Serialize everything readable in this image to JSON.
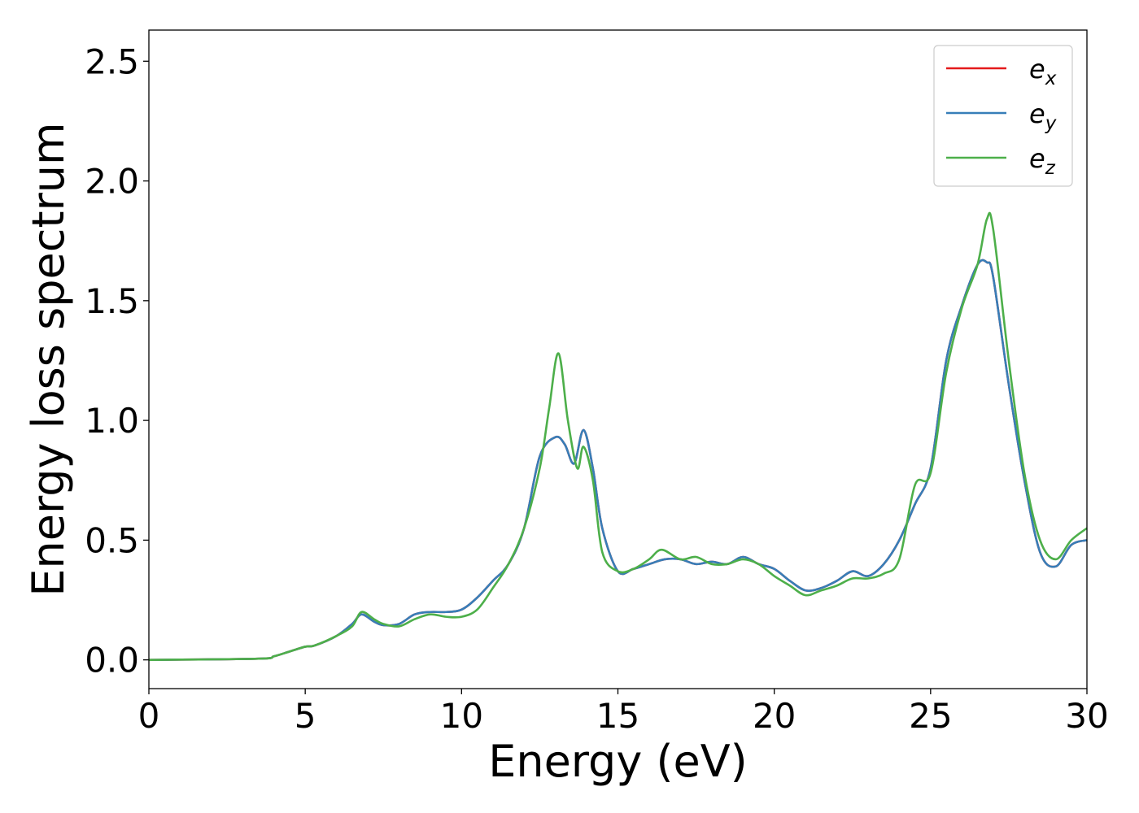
{
  "chart_data": {
    "type": "line",
    "title": "",
    "xlabel": "Energy (eV)",
    "ylabel": "Energy loss spectrum",
    "xlim": [
      0,
      30
    ],
    "ylim": [
      -0.12,
      2.63
    ],
    "xticks": [
      0,
      5,
      10,
      15,
      20,
      25,
      30
    ],
    "xtick_labels": [
      "0",
      "5",
      "10",
      "15",
      "20",
      "25",
      "30"
    ],
    "yticks": [
      0.0,
      0.5,
      1.0,
      1.5,
      2.0,
      2.5
    ],
    "ytick_labels": [
      "0.0",
      "0.5",
      "1.0",
      "1.5",
      "2.0",
      "2.5"
    ],
    "grid": false,
    "legend": {
      "position": "top-right",
      "entries": [
        {
          "base": "e",
          "sub": "x",
          "color": "#e41a1c"
        },
        {
          "base": "e",
          "sub": "y",
          "color": "#377eb8"
        },
        {
          "base": "e",
          "sub": "z",
          "color": "#4daf4a"
        }
      ]
    },
    "series": [
      {
        "name": "e_x",
        "color": "#e41a1c",
        "x": [
          0,
          3.5,
          4,
          4.5,
          5,
          5.3,
          6,
          6.5,
          6.8,
          7.2,
          7.5,
          8,
          8.5,
          9,
          9.5,
          10,
          10.5,
          11,
          11.5,
          12,
          12.5,
          13,
          13.3,
          13.6,
          13.9,
          14.2,
          14.5,
          15,
          15.5,
          16,
          16.5,
          17,
          17.5,
          18,
          18.5,
          19,
          19.5,
          20,
          20.5,
          21,
          21.5,
          22,
          22.5,
          23,
          23.5,
          24,
          24.5,
          25,
          25.5,
          26,
          26.5,
          26.8,
          27,
          27.5,
          28,
          28.5,
          29,
          29.5,
          30
        ],
        "y": [
          0.0,
          0.005,
          0.015,
          0.035,
          0.055,
          0.06,
          0.1,
          0.15,
          0.19,
          0.16,
          0.145,
          0.15,
          0.19,
          0.2,
          0.2,
          0.21,
          0.26,
          0.33,
          0.4,
          0.55,
          0.85,
          0.93,
          0.9,
          0.82,
          0.96,
          0.8,
          0.55,
          0.37,
          0.38,
          0.4,
          0.42,
          0.42,
          0.4,
          0.41,
          0.4,
          0.43,
          0.4,
          0.38,
          0.33,
          0.29,
          0.3,
          0.33,
          0.37,
          0.35,
          0.4,
          0.5,
          0.65,
          0.8,
          1.25,
          1.48,
          1.65,
          1.66,
          1.6,
          1.15,
          0.75,
          0.45,
          0.39,
          0.48,
          0.5
        ]
      },
      {
        "name": "e_y",
        "color": "#377eb8",
        "x": [
          0,
          3.5,
          4,
          4.5,
          5,
          5.3,
          6,
          6.5,
          6.8,
          7.2,
          7.5,
          8,
          8.5,
          9,
          9.5,
          10,
          10.5,
          11,
          11.5,
          12,
          12.5,
          13,
          13.3,
          13.6,
          13.9,
          14.2,
          14.5,
          15,
          15.5,
          16,
          16.5,
          17,
          17.5,
          18,
          18.5,
          19,
          19.5,
          20,
          20.5,
          21,
          21.5,
          22,
          22.5,
          23,
          23.5,
          24,
          24.5,
          25,
          25.5,
          26,
          26.5,
          26.8,
          27,
          27.5,
          28,
          28.5,
          29,
          29.5,
          30
        ],
        "y": [
          0.0,
          0.005,
          0.015,
          0.035,
          0.055,
          0.06,
          0.1,
          0.15,
          0.19,
          0.16,
          0.145,
          0.15,
          0.19,
          0.2,
          0.2,
          0.21,
          0.26,
          0.33,
          0.4,
          0.55,
          0.85,
          0.93,
          0.9,
          0.82,
          0.96,
          0.8,
          0.55,
          0.37,
          0.38,
          0.4,
          0.42,
          0.42,
          0.4,
          0.41,
          0.4,
          0.43,
          0.4,
          0.38,
          0.33,
          0.29,
          0.3,
          0.33,
          0.37,
          0.35,
          0.4,
          0.5,
          0.65,
          0.8,
          1.25,
          1.48,
          1.65,
          1.66,
          1.6,
          1.15,
          0.75,
          0.45,
          0.39,
          0.48,
          0.5
        ]
      },
      {
        "name": "e_z",
        "color": "#4daf4a",
        "x": [
          0,
          3.5,
          4,
          4.5,
          5,
          5.3,
          6,
          6.5,
          6.8,
          7.2,
          7.5,
          8,
          8.5,
          9,
          9.5,
          10,
          10.5,
          11,
          11.5,
          12,
          12.5,
          12.8,
          13.1,
          13.4,
          13.7,
          13.9,
          14.2,
          14.5,
          15,
          15.5,
          16,
          16.4,
          17,
          17.5,
          18,
          18.5,
          19,
          19.5,
          20,
          20.5,
          21,
          21.5,
          22,
          22.5,
          23,
          23.5,
          24,
          24.5,
          25,
          25.5,
          26,
          26.5,
          26.8,
          27,
          27.5,
          28,
          28.5,
          29,
          29.5,
          30
        ],
        "y": [
          0.0,
          0.005,
          0.015,
          0.035,
          0.055,
          0.06,
          0.1,
          0.14,
          0.2,
          0.17,
          0.15,
          0.14,
          0.17,
          0.19,
          0.18,
          0.18,
          0.21,
          0.3,
          0.4,
          0.55,
          0.8,
          1.05,
          1.28,
          1.0,
          0.8,
          0.89,
          0.75,
          0.45,
          0.37,
          0.38,
          0.42,
          0.46,
          0.42,
          0.43,
          0.4,
          0.4,
          0.42,
          0.4,
          0.35,
          0.31,
          0.27,
          0.29,
          0.31,
          0.34,
          0.34,
          0.36,
          0.42,
          0.73,
          0.78,
          1.2,
          1.47,
          1.65,
          1.84,
          1.8,
          1.25,
          0.78,
          0.5,
          0.42,
          0.5,
          0.55
        ]
      }
    ]
  }
}
